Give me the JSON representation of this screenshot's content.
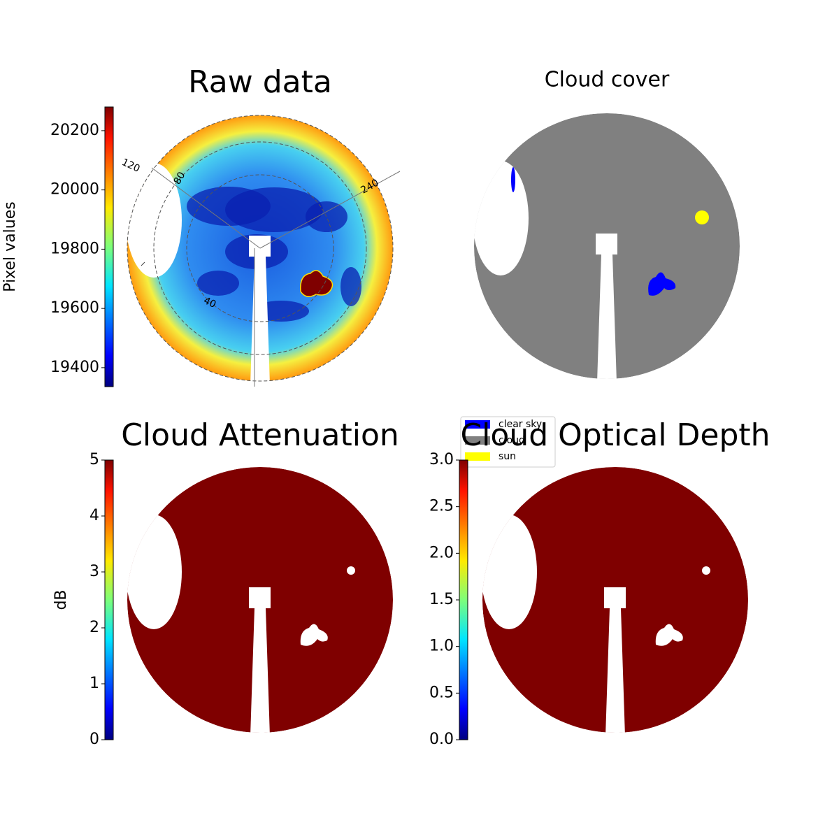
{
  "chart_data": [
    {
      "type": "image",
      "title": "Raw data",
      "annotations": [
        "120",
        "80",
        "240",
        "40"
      ],
      "clabel": "Pixel values",
      "colormap": "jet",
      "clim": [
        19336,
        20280
      ],
      "cticks": [
        19400,
        19600,
        19800,
        20000,
        20200
      ]
    },
    {
      "type": "image",
      "title": "Cloud cover",
      "series": [
        {
          "name": "clear sky",
          "color": "#0000ff"
        },
        {
          "name": "cloud",
          "color": "#808080"
        },
        {
          "name": "sun",
          "color": "#ffff00"
        }
      ]
    },
    {
      "type": "image",
      "title": "Cloud Attenuation",
      "clabel": "dB",
      "colormap": "jet",
      "clim": [
        0,
        5
      ],
      "cticks": [
        0,
        1,
        2,
        3,
        4,
        5
      ]
    },
    {
      "type": "image",
      "title": "Cloud Optical Depth",
      "colormap": "jet",
      "clim": [
        0,
        3
      ],
      "cticks": [
        {
          "value": 0,
          "label": "0.0"
        },
        {
          "value": 0.5,
          "label": "0.5"
        },
        {
          "value": 1,
          "label": "1.0"
        },
        {
          "value": 1.5,
          "label": "1.5"
        },
        {
          "value": 2,
          "label": "2.0"
        },
        {
          "value": 2.5,
          "label": "2.5"
        },
        {
          "value": 3,
          "label": "3.0"
        }
      ]
    }
  ]
}
